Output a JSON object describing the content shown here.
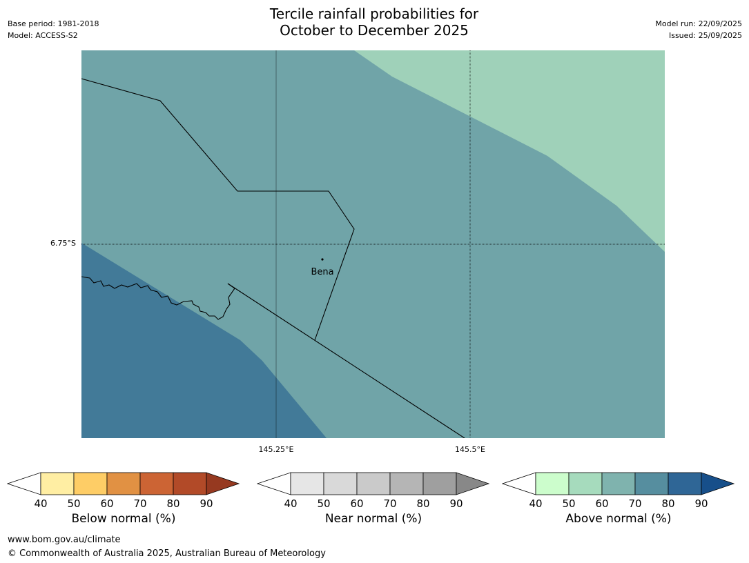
{
  "header": {
    "title_line1": "Tercile rainfall probabilities for",
    "title_line2": "October to December 2025",
    "base_period": "Base period: 1981-2018",
    "model": "Model: ACCESS-S2",
    "model_run": "Model run: 22/09/2025",
    "issued": "Issued: 25/09/2025"
  },
  "map": {
    "place_label": "Bena",
    "lat_tick": "6.75°S",
    "lon_ticks": [
      "145.25°E",
      "145.5°E"
    ],
    "colors": {
      "base": "#70a4a8",
      "light": "#9fd1b9",
      "dark": "#427a98"
    }
  },
  "colorbars": [
    {
      "label": "Below normal (%)",
      "ticks": [
        "40",
        "50",
        "60",
        "70",
        "80",
        "90"
      ],
      "colors": [
        "#ffeea3",
        "#fecd66",
        "#e19143",
        "#cc6434",
        "#b24a28",
        "#963920"
      ]
    },
    {
      "label": "Near normal (%)",
      "ticks": [
        "40",
        "50",
        "60",
        "70",
        "80",
        "90"
      ],
      "colors": [
        "#e6e6e6",
        "#d9d9d9",
        "#cacaca",
        "#b5b5b5",
        "#9f9f9f",
        "#888888"
      ]
    },
    {
      "label": "Above normal (%)",
      "ticks": [
        "40",
        "50",
        "60",
        "70",
        "80",
        "90"
      ],
      "colors": [
        "#ccfdcc",
        "#a6dbbd",
        "#7fb3ae",
        "#568e9f",
        "#2f6696",
        "#174f8a"
      ]
    }
  ],
  "footer": {
    "url": "www.bom.gov.au/climate",
    "copyright": "© Commonwealth of Australia 2025, Australian Bureau of Meteorology"
  }
}
